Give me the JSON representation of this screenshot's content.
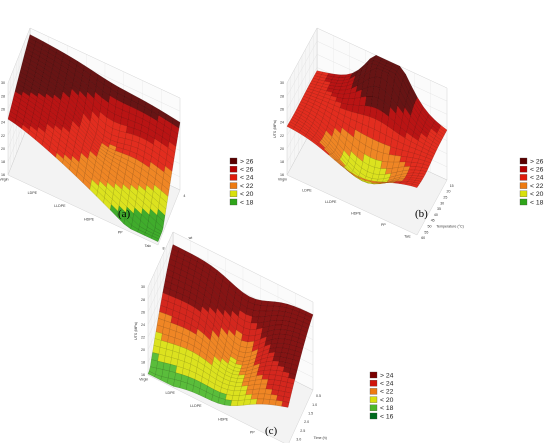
{
  "chart_data": [
    {
      "type": "surface3d",
      "label": "(a)",
      "zlabel": "UTS (MPa)",
      "xlabel": "",
      "ylabel": "wt",
      "categories": [
        "Virgin",
        "LDPE",
        "LLDPE",
        "HDPE",
        "PP",
        "Talc"
      ],
      "category_labels": [
        "Virgin",
        "LDPE",
        "LLDPE",
        "HDPE",
        "PP",
        "Talc"
      ],
      "y_ticks": [
        "4",
        "8"
      ],
      "z_ticks": [
        "16",
        "18",
        "20",
        "22",
        "24",
        "26",
        "28",
        "30"
      ],
      "zlim": [
        16,
        30
      ],
      "legend": [
        "> 26",
        "< 26",
        "< 24",
        "< 22",
        "< 20",
        "< 18"
      ],
      "legend_colors": [
        "#5a0000",
        "#b30000",
        "#e01b0b",
        "#ee7b12",
        "#d9e00c",
        "#2fa51a"
      ],
      "colors": {
        "band_thresholds": [
          18,
          20,
          22,
          24,
          26
        ]
      },
      "surface_shape": "a"
    },
    {
      "type": "surface3d",
      "label": "(b)",
      "zlabel": "UTS (MPa)",
      "xlabel": "Temperature (°C)",
      "ylabel": "",
      "categories": [
        "Virgin",
        "LDPE",
        "LLDPE",
        "HDPE",
        "PP",
        "Talc"
      ],
      "category_labels": [
        "Virgin",
        "LDPE",
        "LLDPE",
        "HDPE",
        "PP",
        "Talc"
      ],
      "x_ticks": [
        "15",
        "20",
        "25",
        "30",
        "35",
        "40",
        "45",
        "50",
        "55",
        "60"
      ],
      "z_ticks": [
        "16",
        "18",
        "20",
        "22",
        "24",
        "26",
        "28",
        "30"
      ],
      "zlim": [
        16,
        30
      ],
      "legend": [
        "> 26",
        "< 26",
        "< 24",
        "< 22",
        "< 20",
        "< 18"
      ],
      "legend_colors": [
        "#5a0000",
        "#b30000",
        "#e01b0b",
        "#ee7b12",
        "#d9e00c",
        "#2fa51a"
      ],
      "colors": {
        "band_thresholds": [
          18,
          20,
          22,
          24,
          26
        ]
      },
      "surface_shape": "b"
    },
    {
      "type": "surface3d",
      "label": "(c)",
      "zlabel": "UTS (MPa)",
      "xlabel": "Time (h)",
      "ylabel": "",
      "categories": [
        "Virgin",
        "LDPE",
        "LLDPE",
        "HDPE",
        "PP",
        "Talc"
      ],
      "category_labels": [
        "Virgin",
        "LDPE",
        "LLDPE",
        "HDPE",
        "PP",
        "Talc"
      ],
      "x_ticks": [
        "0.5",
        "1.0",
        "1.5",
        "2.0",
        "2.5",
        "3.0",
        "3.5"
      ],
      "z_ticks": [
        "16",
        "18",
        "20",
        "22",
        "24",
        "26",
        "28",
        "30"
      ],
      "zlim": [
        16,
        30
      ],
      "legend": [
        "> 24",
        "< 24",
        "< 22",
        "< 20",
        "< 18",
        "< 16"
      ],
      "legend_colors": [
        "#7a0000",
        "#d0140a",
        "#ee7b12",
        "#d9e00c",
        "#4cb72a",
        "#006b1e"
      ],
      "colors": {
        "band_thresholds": [
          16,
          18,
          20,
          22,
          24
        ]
      },
      "surface_shape": "c"
    }
  ]
}
